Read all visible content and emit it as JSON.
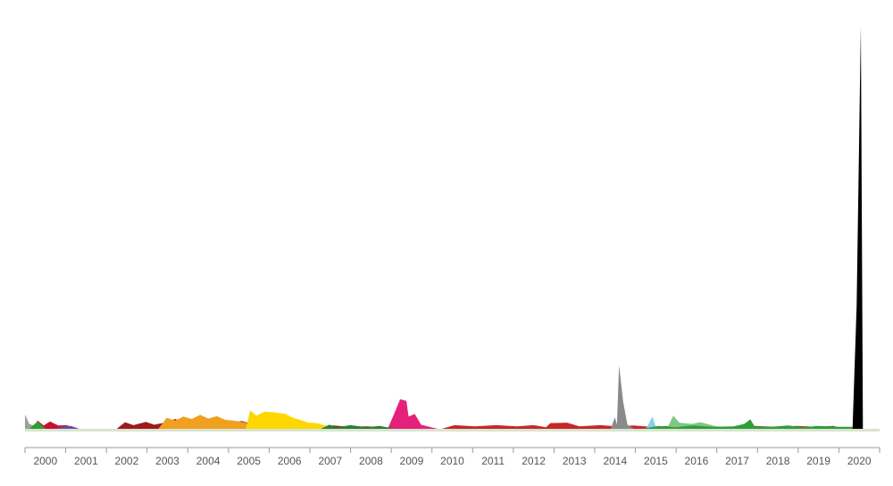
{
  "chart_data": {
    "type": "area",
    "title": "",
    "xlabel": "",
    "ylabel": "",
    "grid": false,
    "legend": "none",
    "x_ticks": [
      "2000",
      "2001",
      "2002",
      "2003",
      "2004",
      "2005",
      "2006",
      "2007",
      "2008",
      "2009",
      "2010",
      "2011",
      "2012",
      "2013",
      "2014",
      "2015",
      "2016",
      "2017",
      "2018",
      "2019",
      "2020"
    ],
    "x_range": [
      2000.0,
      2020.5
    ],
    "ylim": [
      0,
      100
    ],
    "series": [
      {
        "color": "#9e9e9e",
        "points": [
          [
            2000.0,
            3.5
          ],
          [
            2000.1,
            1.2
          ],
          [
            2000.25,
            0.6
          ],
          [
            2000.5,
            0
          ]
        ]
      },
      {
        "color": "#c8102e",
        "points": [
          [
            2000.2,
            0
          ],
          [
            2000.3,
            2.0
          ],
          [
            2000.45,
            0.8
          ],
          [
            2000.6,
            1.8
          ],
          [
            2000.8,
            0.8
          ],
          [
            2001.0,
            0.9
          ],
          [
            2001.2,
            0
          ]
        ]
      },
      {
        "color": "#7b3fa0",
        "points": [
          [
            2000.7,
            0
          ],
          [
            2000.9,
            0.6
          ],
          [
            2001.1,
            0.7
          ],
          [
            2001.3,
            0
          ]
        ]
      },
      {
        "color": "#1f77b4",
        "points": [
          [
            2000.9,
            0
          ],
          [
            2001.0,
            0.3
          ],
          [
            2001.1,
            0.2
          ],
          [
            2001.2,
            0
          ]
        ]
      },
      {
        "color": "#2ca02c",
        "points": [
          [
            2000.1,
            0
          ],
          [
            2000.3,
            1.8
          ],
          [
            2000.5,
            0
          ]
        ]
      },
      {
        "color": "#9e1b1b",
        "points": [
          [
            2002.2,
            0
          ],
          [
            2002.4,
            1.6
          ],
          [
            2002.6,
            0.9
          ],
          [
            2002.9,
            1.7
          ],
          [
            2003.1,
            1.0
          ],
          [
            2003.4,
            1.6
          ],
          [
            2003.6,
            2.4
          ],
          [
            2003.8,
            1.5
          ],
          [
            2004.0,
            2.0
          ],
          [
            2004.3,
            1.2
          ],
          [
            2004.6,
            2.3
          ],
          [
            2004.9,
            1.4
          ],
          [
            2005.2,
            1.9
          ],
          [
            2005.5,
            1.0
          ],
          [
            2005.8,
            1.6
          ],
          [
            2006.2,
            1.0
          ],
          [
            2006.6,
            0.6
          ],
          [
            2007.0,
            0.5
          ],
          [
            2007.4,
            0.8
          ],
          [
            2007.8,
            0.5
          ],
          [
            2008.2,
            0.6
          ],
          [
            2008.6,
            0.4
          ],
          [
            2008.8,
            0
          ]
        ]
      },
      {
        "color": "#f0a020",
        "points": [
          [
            2003.2,
            0
          ],
          [
            2003.4,
            2.7
          ],
          [
            2003.6,
            2.0
          ],
          [
            2003.8,
            3.0
          ],
          [
            2004.0,
            2.4
          ],
          [
            2004.2,
            3.4
          ],
          [
            2004.4,
            2.5
          ],
          [
            2004.6,
            3.1
          ],
          [
            2004.8,
            2.2
          ],
          [
            2005.0,
            2.0
          ],
          [
            2005.3,
            1.5
          ],
          [
            2005.5,
            0
          ]
        ]
      },
      {
        "color": "#ffd700",
        "points": [
          [
            2005.3,
            0
          ],
          [
            2005.4,
            4.5
          ],
          [
            2005.55,
            3.2
          ],
          [
            2005.75,
            4.2
          ],
          [
            2006.0,
            4.0
          ],
          [
            2006.25,
            3.6
          ],
          [
            2006.45,
            2.6
          ],
          [
            2006.6,
            2.2
          ],
          [
            2006.8,
            1.5
          ],
          [
            2007.0,
            1.4
          ],
          [
            2007.2,
            0.8
          ],
          [
            2007.5,
            0.3
          ],
          [
            2007.7,
            0
          ]
        ]
      },
      {
        "color": "#e5217a",
        "points": [
          [
            2008.7,
            0
          ],
          [
            2008.85,
            3.5
          ],
          [
            2009.0,
            7.2
          ],
          [
            2009.15,
            6.8
          ],
          [
            2009.2,
            3.0
          ],
          [
            2009.35,
            3.6
          ],
          [
            2009.5,
            1.0
          ],
          [
            2009.7,
            0.5
          ],
          [
            2009.9,
            0
          ]
        ]
      },
      {
        "color": "#2e7d32",
        "points": [
          [
            2007.1,
            0
          ],
          [
            2007.3,
            1.0
          ],
          [
            2007.5,
            0.4
          ],
          [
            2007.8,
            0.9
          ],
          [
            2008.2,
            0.4
          ],
          [
            2008.5,
            0.7
          ],
          [
            2008.9,
            0
          ]
        ]
      },
      {
        "color": "#c62828",
        "points": [
          [
            2010.0,
            0
          ],
          [
            2010.3,
            0.9
          ],
          [
            2010.8,
            0.6
          ],
          [
            2011.3,
            0.9
          ],
          [
            2011.8,
            0.6
          ],
          [
            2012.2,
            0.9
          ],
          [
            2012.5,
            0.4
          ],
          [
            2012.6,
            1.4
          ],
          [
            2013.0,
            1.5
          ],
          [
            2013.3,
            0.6
          ],
          [
            2013.8,
            0.9
          ],
          [
            2014.2,
            0.6
          ],
          [
            2014.6,
            0.8
          ],
          [
            2015.0,
            0.5
          ],
          [
            2015.5,
            0.7
          ],
          [
            2016.0,
            0.4
          ],
          [
            2016.5,
            0.6
          ],
          [
            2017.0,
            0.4
          ],
          [
            2017.5,
            0.7
          ],
          [
            2018.0,
            0.5
          ],
          [
            2018.5,
            0.7
          ],
          [
            2019.0,
            0.5
          ],
          [
            2019.4,
            0.7
          ],
          [
            2019.6,
            0
          ]
        ]
      },
      {
        "color": "#8a8a8a",
        "points": [
          [
            2014.05,
            0
          ],
          [
            2014.15,
            2.8
          ],
          [
            2014.2,
            1.0
          ],
          [
            2014.25,
            15.5
          ],
          [
            2014.35,
            6.5
          ],
          [
            2014.45,
            1.0
          ],
          [
            2014.6,
            0
          ]
        ]
      },
      {
        "color": "#87ceeb",
        "points": [
          [
            2014.9,
            0
          ],
          [
            2015.05,
            3.0
          ],
          [
            2015.15,
            0
          ]
        ]
      },
      {
        "color": "#81c784",
        "points": [
          [
            2015.4,
            0
          ],
          [
            2015.55,
            3.2
          ],
          [
            2015.7,
            1.5
          ],
          [
            2016.0,
            1.2
          ],
          [
            2016.2,
            1.6
          ],
          [
            2016.5,
            0.8
          ],
          [
            2016.8,
            0
          ]
        ]
      },
      {
        "color": "#2e9e3a",
        "points": [
          [
            2014.8,
            0
          ],
          [
            2015.2,
            0.7
          ],
          [
            2015.6,
            0.4
          ],
          [
            2016.0,
            0.8
          ],
          [
            2016.5,
            0.5
          ],
          [
            2017.0,
            0.6
          ],
          [
            2017.25,
            1.2
          ],
          [
            2017.4,
            2.3
          ],
          [
            2017.5,
            0.6
          ],
          [
            2017.9,
            0.5
          ],
          [
            2018.3,
            0.8
          ],
          [
            2018.7,
            0.4
          ],
          [
            2019.0,
            0.7
          ],
          [
            2019.5,
            0.5
          ],
          [
            2020.0,
            0.5
          ],
          [
            2020.1,
            0
          ]
        ]
      },
      {
        "color": "#000000",
        "points": [
          [
            2019.85,
            0
          ],
          [
            2019.95,
            30.0
          ],
          [
            2020.05,
            98.0
          ],
          [
            2020.1,
            0
          ]
        ]
      }
    ]
  }
}
